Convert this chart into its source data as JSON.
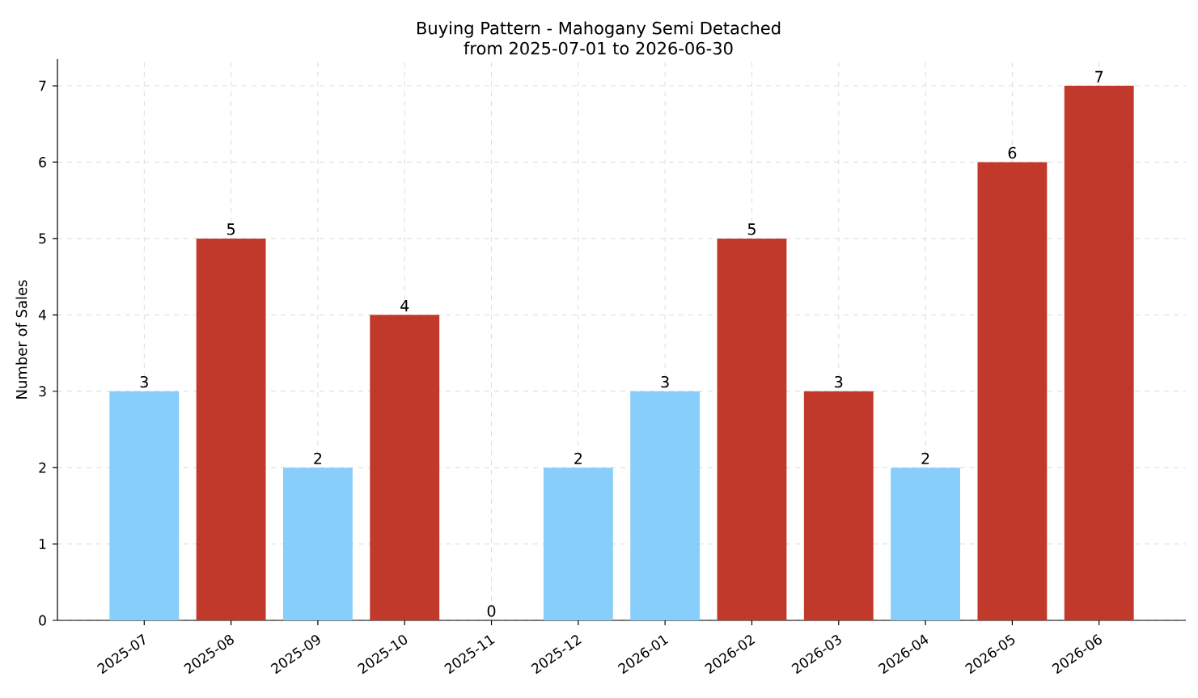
{
  "chart_data": {
    "type": "bar",
    "title": "Buying Pattern - Mahogany Semi Detached",
    "subtitle": "from 2025-07-01 to 2026-06-30",
    "ylabel": "Number of Sales",
    "categories": [
      "2025-07",
      "2025-08",
      "2025-09",
      "2025-10",
      "2025-11",
      "2025-12",
      "2026-01",
      "2026-02",
      "2026-03",
      "2026-04",
      "2026-05",
      "2026-06"
    ],
    "values": [
      3,
      5,
      2,
      4,
      0,
      2,
      3,
      5,
      3,
      2,
      6,
      7
    ],
    "colors": [
      "#87cefa",
      "#c0392b",
      "#87cefa",
      "#c0392b",
      "#87cefa",
      "#87cefa",
      "#87cefa",
      "#c0392b",
      "#c0392b",
      "#87cefa",
      "#c0392b",
      "#c0392b"
    ],
    "ylim": [
      0,
      7.35
    ],
    "yticks": [
      0,
      1,
      2,
      3,
      4,
      5,
      6,
      7
    ],
    "grid": true,
    "data_labels": true
  }
}
